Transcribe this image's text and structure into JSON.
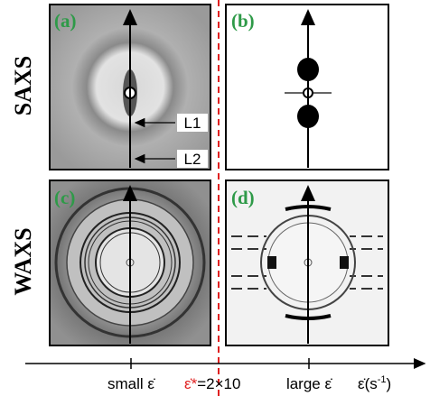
{
  "row_labels": [
    "SAXS",
    "WAXS"
  ],
  "panels": [
    "(a)",
    "(b)",
    "(c)",
    "(d)"
  ],
  "annotations": [
    "L1",
    "L2"
  ],
  "axis": {
    "small": "small ε̇",
    "critical": "ε̇*",
    "critical_value": "=2×10",
    "large": "large ε̇",
    "unit": [
      "ε̇(s",
      "-1",
      ")"
    ]
  }
}
